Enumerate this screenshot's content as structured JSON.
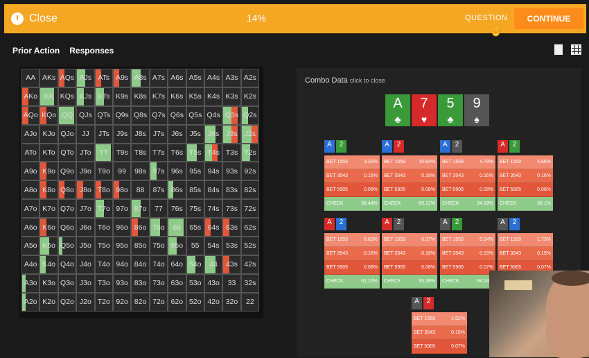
{
  "topbar": {
    "close_label": "Close",
    "progress": "14%",
    "question_label": "QUESTION",
    "continue_label": "CONTINUE"
  },
  "subbar": {
    "prior_action": "Prior Action",
    "responses": "Responses"
  },
  "matrix": {
    "hands": [
      "AA",
      "AKs",
      "AQs",
      "AJs",
      "ATs",
      "A9s",
      "A8s",
      "A7s",
      "A6s",
      "A5s",
      "A4s",
      "A3s",
      "A2s",
      "AKo",
      "KK",
      "KQs",
      "KJs",
      "KTs",
      "K9s",
      "K8s",
      "K7s",
      "K6s",
      "K5s",
      "K4s",
      "K3s",
      "K2s",
      "AQo",
      "KQo",
      "QQ",
      "QJs",
      "QTs",
      "Q9s",
      "Q8s",
      "Q7s",
      "Q6s",
      "Q5s",
      "Q4s",
      "Q3s",
      "Q2s",
      "AJo",
      "KJo",
      "QJo",
      "JJ",
      "JTs",
      "J9s",
      "J8s",
      "J7s",
      "J6s",
      "J5s",
      "J4s",
      "J3s",
      "J2s",
      "ATo",
      "KTo",
      "QTo",
      "JTo",
      "TT",
      "T9s",
      "T8s",
      "T7s",
      "T6s",
      "T5s",
      "T4s",
      "T3s",
      "T2s",
      "A9o",
      "K9o",
      "Q9o",
      "J9o",
      "T9o",
      "99",
      "98s",
      "97s",
      "96s",
      "95s",
      "94s",
      "93s",
      "92s",
      "A8o",
      "K8o",
      "Q8o",
      "J8o",
      "T8o",
      "98o",
      "88",
      "87s",
      "86s",
      "85s",
      "84s",
      "83s",
      "82s",
      "A7o",
      "K7o",
      "Q7o",
      "J7o",
      "T7o",
      "97o",
      "87o",
      "77",
      "76s",
      "75s",
      "74s",
      "73s",
      "72s",
      "A6o",
      "K6o",
      "Q6o",
      "J6o",
      "T6o",
      "96o",
      "86o",
      "76o",
      "66",
      "65s",
      "64s",
      "63s",
      "62s",
      "A5o",
      "K5o",
      "Q5o",
      "J5o",
      "T5o",
      "95o",
      "85o",
      "75o",
      "65o",
      "55",
      "54s",
      "53s",
      "52s",
      "A4o",
      "K4o",
      "Q4o",
      "J4o",
      "T4o",
      "94o",
      "84o",
      "74o",
      "64o",
      "54o",
      "44",
      "43s",
      "42s",
      "A3o",
      "K3o",
      "Q3o",
      "J3o",
      "T3o",
      "93o",
      "83o",
      "73o",
      "63o",
      "53o",
      "43o",
      "33",
      "32s",
      "A2o",
      "K2o",
      "Q2o",
      "J2o",
      "T2o",
      "92o",
      "82o",
      "72o",
      "62o",
      "52o",
      "42o",
      "32o",
      "22"
    ],
    "colors": {
      "green": "#8ecb8a",
      "red": "#e2563a"
    }
  },
  "combo_panel": {
    "title": "Combo Data",
    "hint": "click to close",
    "board": [
      {
        "rank": "A",
        "suit": "clubs",
        "color": "#3a9a3a"
      },
      {
        "rank": "7",
        "suit": "hearts",
        "color": "#d62a2a"
      },
      {
        "rank": "5",
        "suit": "clubs",
        "color": "#3a9a3a"
      },
      {
        "rank": "9",
        "suit": "spades",
        "color": "#555555"
      }
    ],
    "combos": [
      {
        "cards": [
          {
            "rank": "A",
            "color": "#2a6fd6"
          },
          {
            "rank": "2",
            "color": "#3a9a3a"
          }
        ],
        "rows": [
          {
            "label": "BET 1559",
            "value": "3.32%"
          },
          {
            "label": "BET 3543",
            "value": "0.16%"
          },
          {
            "label": "BET 5905",
            "value": "0.08%"
          },
          {
            "label": "CHECK",
            "value": "96.44%"
          }
        ]
      },
      {
        "cards": [
          {
            "rank": "A",
            "color": "#2a6fd6"
          },
          {
            "rank": "2",
            "color": "#d62a2a"
          }
        ],
        "rows": [
          {
            "label": "BET 1559",
            "value": "10.64%"
          },
          {
            "label": "BET 3543",
            "value": "0.16%"
          },
          {
            "label": "BET 5905",
            "value": "0.08%"
          },
          {
            "label": "CHECK",
            "value": "89.12%"
          }
        ]
      },
      {
        "cards": [
          {
            "rank": "A",
            "color": "#2a6fd6"
          },
          {
            "rank": "2",
            "color": "#555555"
          }
        ],
        "rows": [
          {
            "label": "BET 1559",
            "value": "4.78%"
          },
          {
            "label": "BET 3543",
            "value": "0.16%"
          },
          {
            "label": "BET 5905",
            "value": "0.08%"
          },
          {
            "label": "CHECK",
            "value": "94.99%"
          }
        ]
      },
      {
        "cards": [
          {
            "rank": "A",
            "color": "#d62a2a"
          },
          {
            "rank": "2",
            "color": "#3a9a3a"
          }
        ],
        "rows": [
          {
            "label": "BET 1559",
            "value": "4.66%"
          },
          {
            "label": "BET 3543",
            "value": "0.16%"
          },
          {
            "label": "BET 5905",
            "value": "0.08%"
          },
          {
            "label": "CHECK",
            "value": "95.1%"
          }
        ]
      },
      {
        "cards": [
          {
            "rank": "A",
            "color": "#d62a2a"
          },
          {
            "rank": "2",
            "color": "#2a6fd6"
          }
        ],
        "rows": [
          {
            "label": "BET 1559",
            "value": "8.63%"
          },
          {
            "label": "BET 3543",
            "value": "0.16%"
          },
          {
            "label": "BET 5905",
            "value": "0.08%"
          },
          {
            "label": "CHECK",
            "value": "91.13%"
          }
        ]
      },
      {
        "cards": [
          {
            "rank": "A",
            "color": "#d62a2a"
          },
          {
            "rank": "2",
            "color": "#555555"
          }
        ],
        "rows": [
          {
            "label": "BET 1559",
            "value": "6.37%"
          },
          {
            "label": "BET 3543",
            "value": "0.16%"
          },
          {
            "label": "BET 5905",
            "value": "0.08%"
          },
          {
            "label": "CHECK",
            "value": "93.39%"
          }
        ]
      },
      {
        "cards": [
          {
            "rank": "A",
            "color": "#555555"
          },
          {
            "rank": "2",
            "color": "#3a9a3a"
          }
        ],
        "rows": [
          {
            "label": "BET 1559",
            "value": "5.54%"
          },
          {
            "label": "BET 3543",
            "value": "0.15%"
          },
          {
            "label": "BET 5905",
            "value": "0.07%"
          },
          {
            "label": "CHECK",
            "value": "94.24%"
          }
        ]
      },
      {
        "cards": [
          {
            "rank": "A",
            "color": "#555555"
          },
          {
            "rank": "2",
            "color": "#2a6fd6"
          }
        ],
        "rows": [
          {
            "label": "BET 1559",
            "value": "1.73%"
          },
          {
            "label": "BET 3543",
            "value": "0.15%"
          },
          {
            "label": "BET 5905",
            "value": "0.07%"
          },
          {
            "label": "CHECK",
            "value": ""
          }
        ]
      },
      {
        "cards": [
          {
            "rank": "A",
            "color": "#555555"
          },
          {
            "rank": "2",
            "color": "#d62a2a"
          }
        ],
        "rows": [
          {
            "label": "BET 1559",
            "value": "1.52%"
          },
          {
            "label": "BET 3543",
            "value": "0.15%"
          },
          {
            "label": "BET 5905",
            "value": "0.07%"
          }
        ]
      }
    ]
  }
}
